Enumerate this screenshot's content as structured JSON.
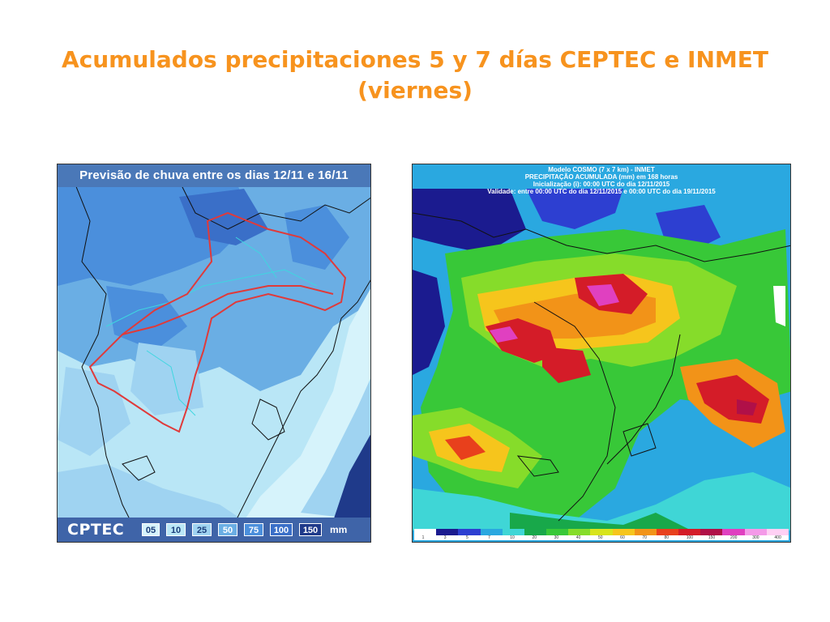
{
  "title": {
    "line1": "Acumulados precipitaciones 5 y 7 días CEPTEC e INMET",
    "line2": "(viernes)"
  },
  "left_map": {
    "header": "Previsão de chuva entre os dias 12/11 e 16/11",
    "logo": "CPTEC",
    "unit": "mm",
    "legend": [
      {
        "label": "05",
        "color": "#d6f3fb",
        "text": "#1a3d7a"
      },
      {
        "label": "10",
        "color": "#b9e6f6",
        "text": "#1a3d7a"
      },
      {
        "label": "25",
        "color": "#9fd3f1",
        "text": "#1a3d7a"
      },
      {
        "label": "50",
        "color": "#6aaee4",
        "text": "#ffffff"
      },
      {
        "label": "75",
        "color": "#4b8fdc",
        "text": "#ffffff"
      },
      {
        "label": "100",
        "color": "#3a6fc8",
        "text": "#ffffff"
      },
      {
        "label": "150",
        "color": "#1f3a8a",
        "text": "#ffffff"
      }
    ]
  },
  "right_map": {
    "header": [
      "Modelo COSMO (7 x 7 km) - INMET",
      "PRECIPITAÇÃO ACUMULADA (mm) em 168 horas",
      "Inicialização (i): 00:00 UTC do dia 12/11/2015",
      "Validade: entre 00:00 UTC do dia 12/11/2015 e 00:00 UTC do dia 19/11/2015"
    ],
    "scale": [
      {
        "label": "1",
        "color": "#ffffff"
      },
      {
        "label": "3",
        "color": "#1b1b8f"
      },
      {
        "label": "5",
        "color": "#2d3fd1"
      },
      {
        "label": "7",
        "color": "#2aa8e0"
      },
      {
        "label": "10",
        "color": "#3fd6d6"
      },
      {
        "label": "20",
        "color": "#18a84a"
      },
      {
        "label": "30",
        "color": "#38c838"
      },
      {
        "label": "40",
        "color": "#86dc2a"
      },
      {
        "label": "50",
        "color": "#d8e41c"
      },
      {
        "label": "60",
        "color": "#f6c51c"
      },
      {
        "label": "70",
        "color": "#f29318"
      },
      {
        "label": "80",
        "color": "#e8401c"
      },
      {
        "label": "100",
        "color": "#d41c28"
      },
      {
        "label": "150",
        "color": "#b01048"
      },
      {
        "label": "200",
        "color": "#e040c0"
      },
      {
        "label": "300",
        "color": "#f49ae8"
      },
      {
        "label": "400",
        "color": "#ffd0f4"
      }
    ]
  }
}
